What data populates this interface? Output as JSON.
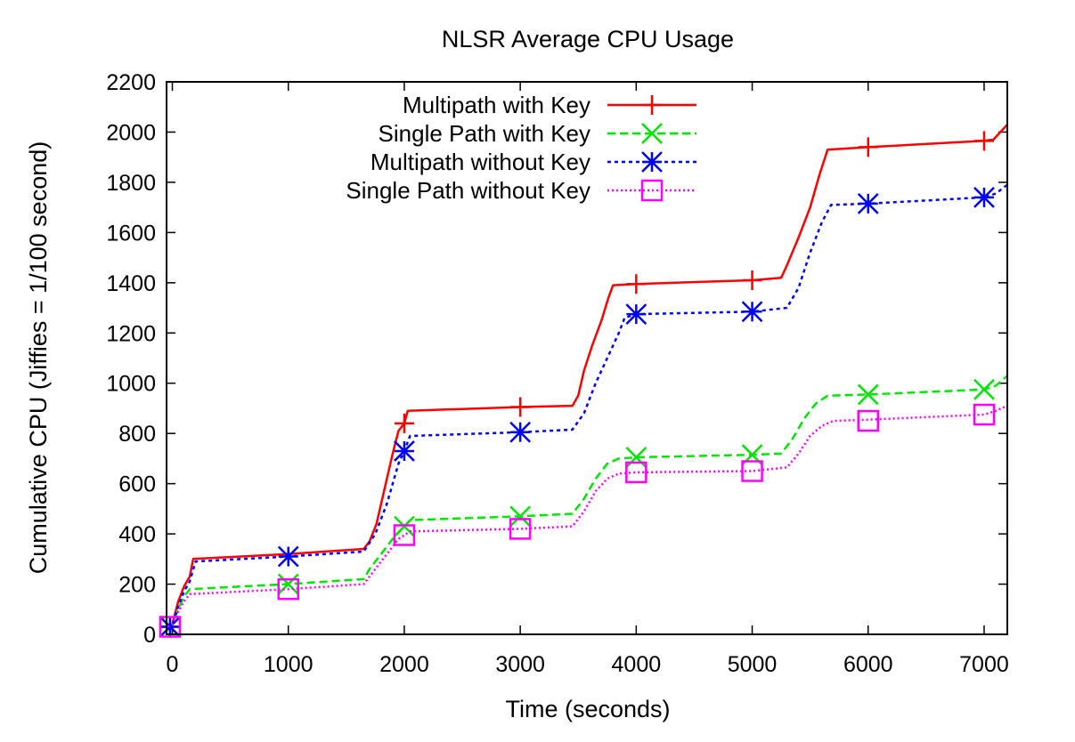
{
  "chart_data": {
    "type": "line",
    "title": "NLSR Average CPU Usage",
    "xlabel": "Time (seconds)",
    "ylabel": "Cumulative CPU (Jiffies = 1/100 second)",
    "xlim": [
      -50,
      7200
    ],
    "ylim": [
      0,
      2200
    ],
    "xticks": [
      0,
      1000,
      2000,
      3000,
      4000,
      5000,
      6000,
      7000
    ],
    "yticks": [
      0,
      200,
      400,
      600,
      800,
      1000,
      1200,
      1400,
      1600,
      1800,
      2000,
      2200
    ],
    "legend_position": "top-left",
    "grid": false,
    "series": [
      {
        "name": "Multipath with Key",
        "color": "#ff0000",
        "dash": "solid",
        "marker": "plus",
        "points": [
          [
            -40,
            30
          ],
          [
            0,
            40
          ],
          [
            50,
            130
          ],
          [
            100,
            190
          ],
          [
            150,
            230
          ],
          [
            180,
            300
          ],
          [
            1000,
            320
          ],
          [
            1650,
            340
          ],
          [
            1700,
            370
          ],
          [
            1760,
            440
          ],
          [
            1800,
            520
          ],
          [
            1850,
            620
          ],
          [
            1900,
            720
          ],
          [
            1950,
            810
          ],
          [
            2000,
            840
          ],
          [
            2030,
            890
          ],
          [
            3000,
            905
          ],
          [
            3450,
            910
          ],
          [
            3500,
            950
          ],
          [
            3550,
            1050
          ],
          [
            3620,
            1150
          ],
          [
            3700,
            1250
          ],
          [
            3760,
            1340
          ],
          [
            3800,
            1390
          ],
          [
            4000,
            1395
          ],
          [
            5000,
            1410
          ],
          [
            5250,
            1420
          ],
          [
            5300,
            1470
          ],
          [
            5400,
            1580
          ],
          [
            5500,
            1700
          ],
          [
            5580,
            1830
          ],
          [
            5650,
            1930
          ],
          [
            6000,
            1940
          ],
          [
            7000,
            1965
          ],
          [
            7080,
            1970
          ],
          [
            7200,
            2030
          ]
        ],
        "markers": [
          [
            -20,
            30
          ],
          [
            2000,
            840
          ],
          [
            3000,
            905
          ],
          [
            4000,
            1395
          ],
          [
            5000,
            1410
          ],
          [
            6000,
            1940
          ],
          [
            7000,
            1965
          ]
        ]
      },
      {
        "name": "Single Path with Key",
        "color": "#00e600",
        "dash": "dashed",
        "marker": "x",
        "points": [
          [
            -40,
            30
          ],
          [
            0,
            40
          ],
          [
            50,
            100
          ],
          [
            100,
            150
          ],
          [
            150,
            180
          ],
          [
            1000,
            200
          ],
          [
            1650,
            220
          ],
          [
            1700,
            260
          ],
          [
            1800,
            320
          ],
          [
            1900,
            380
          ],
          [
            2000,
            430
          ],
          [
            2050,
            455
          ],
          [
            3000,
            470
          ],
          [
            3450,
            480
          ],
          [
            3550,
            540
          ],
          [
            3650,
            620
          ],
          [
            3750,
            680
          ],
          [
            3850,
            700
          ],
          [
            4000,
            705
          ],
          [
            5000,
            715
          ],
          [
            5250,
            720
          ],
          [
            5350,
            780
          ],
          [
            5450,
            860
          ],
          [
            5550,
            920
          ],
          [
            5650,
            950
          ],
          [
            6000,
            955
          ],
          [
            7000,
            975
          ],
          [
            7100,
            990
          ],
          [
            7200,
            1030
          ]
        ],
        "markers": [
          [
            -20,
            30
          ],
          [
            1000,
            200
          ],
          [
            2000,
            430
          ],
          [
            3000,
            470
          ],
          [
            4000,
            705
          ],
          [
            5000,
            715
          ],
          [
            6000,
            955
          ],
          [
            7000,
            975
          ]
        ]
      },
      {
        "name": "Multipath without Key",
        "color": "#0000ff",
        "dash": "dotted",
        "marker": "star",
        "points": [
          [
            -40,
            30
          ],
          [
            0,
            40
          ],
          [
            50,
            110
          ],
          [
            100,
            170
          ],
          [
            150,
            210
          ],
          [
            200,
            290
          ],
          [
            1000,
            310
          ],
          [
            1650,
            330
          ],
          [
            1750,
            400
          ],
          [
            1850,
            520
          ],
          [
            1950,
            680
          ],
          [
            2000,
            730
          ],
          [
            2050,
            790
          ],
          [
            3000,
            805
          ],
          [
            3450,
            815
          ],
          [
            3550,
            880
          ],
          [
            3650,
            1000
          ],
          [
            3750,
            1100
          ],
          [
            3850,
            1200
          ],
          [
            3900,
            1260
          ],
          [
            4000,
            1275
          ],
          [
            5000,
            1285
          ],
          [
            5300,
            1300
          ],
          [
            5400,
            1380
          ],
          [
            5500,
            1520
          ],
          [
            5600,
            1640
          ],
          [
            5680,
            1710
          ],
          [
            6000,
            1715
          ],
          [
            7000,
            1740
          ],
          [
            7100,
            1755
          ],
          [
            7200,
            1790
          ]
        ],
        "markers": [
          [
            -20,
            30
          ],
          [
            1000,
            310
          ],
          [
            2000,
            730
          ],
          [
            3000,
            805
          ],
          [
            4000,
            1275
          ],
          [
            5000,
            1285
          ],
          [
            6000,
            1715
          ],
          [
            7000,
            1740
          ]
        ]
      },
      {
        "name": "Single Path without Key",
        "color": "#ff00ff",
        "dash": "dotted-fine",
        "marker": "square",
        "points": [
          [
            -40,
            30
          ],
          [
            0,
            40
          ],
          [
            50,
            90
          ],
          [
            100,
            130
          ],
          [
            150,
            160
          ],
          [
            1000,
            180
          ],
          [
            1650,
            200
          ],
          [
            1750,
            260
          ],
          [
            1850,
            320
          ],
          [
            1950,
            380
          ],
          [
            2050,
            410
          ],
          [
            3000,
            420
          ],
          [
            3450,
            430
          ],
          [
            3550,
            490
          ],
          [
            3650,
            570
          ],
          [
            3750,
            620
          ],
          [
            3850,
            640
          ],
          [
            4000,
            645
          ],
          [
            5000,
            650
          ],
          [
            5300,
            665
          ],
          [
            5400,
            720
          ],
          [
            5500,
            790
          ],
          [
            5600,
            830
          ],
          [
            5700,
            850
          ],
          [
            6000,
            855
          ],
          [
            7000,
            875
          ],
          [
            7100,
            890
          ],
          [
            7200,
            910
          ]
        ],
        "markers": [
          [
            -20,
            30
          ],
          [
            1000,
            180
          ],
          [
            2000,
            395
          ],
          [
            3000,
            420
          ],
          [
            4000,
            645
          ],
          [
            5000,
            650
          ],
          [
            6000,
            850
          ],
          [
            7000,
            875
          ]
        ]
      }
    ]
  }
}
